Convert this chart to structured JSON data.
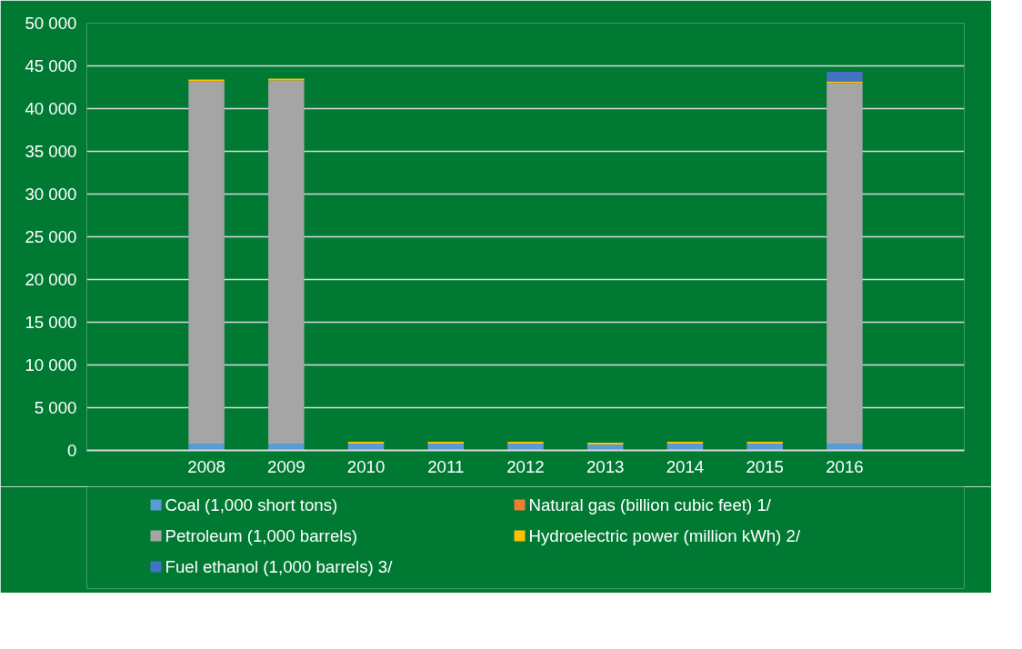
{
  "chart_data": {
    "type": "bar",
    "stacked": true,
    "categories": [
      null,
      "2008",
      "2009",
      "2010",
      "2011",
      "2012",
      "2013",
      "2014",
      "2015",
      "2016",
      null
    ],
    "series": [
      {
        "name": "Coal (1,000 short tons)",
        "color": "#5b9bd5",
        "values": [
          null,
          800,
          800,
          800,
          800,
          800,
          700,
          800,
          800,
          800,
          null
        ]
      },
      {
        "name": "Natural gas (billion cubic feet) 1/",
        "color": "#ed7d31",
        "values": [
          null,
          null,
          null,
          null,
          null,
          null,
          null,
          null,
          null,
          null,
          null
        ]
      },
      {
        "name": "Petroleum (1,000 barrels)",
        "color": "#a5a5a5",
        "values": [
          null,
          42400,
          42500,
          null,
          null,
          null,
          null,
          null,
          null,
          42200,
          null
        ]
      },
      {
        "name": "Hydroelectric power (million kWh) 2/",
        "color": "#ffc000",
        "values": [
          null,
          200,
          200,
          200,
          200,
          200,
          200,
          200,
          200,
          200,
          null
        ]
      },
      {
        "name": "Fuel ethanol (1,000 barrels) 3/",
        "color": "#4472c4",
        "values": [
          null,
          null,
          null,
          null,
          null,
          null,
          null,
          null,
          null,
          1100,
          null
        ]
      }
    ],
    "ylim": [
      0,
      50000
    ],
    "yticks": [
      0,
      {
        "value": 5000,
        "label": "5 000"
      },
      {
        "value": 10000,
        "label": "10 000"
      },
      {
        "value": 15000,
        "label": "15 000"
      },
      {
        "value": 20000,
        "label": "20 000"
      },
      {
        "value": 25000,
        "label": "25 000"
      },
      {
        "value": 30000,
        "label": "30 000"
      },
      {
        "value": 35000,
        "label": "35 000"
      },
      {
        "value": 40000,
        "label": "40 000"
      },
      {
        "value": 45000,
        "label": "45 000"
      },
      {
        "value": 50000,
        "label": "50 000"
      }
    ],
    "grid": "y",
    "legend": "bottom"
  }
}
